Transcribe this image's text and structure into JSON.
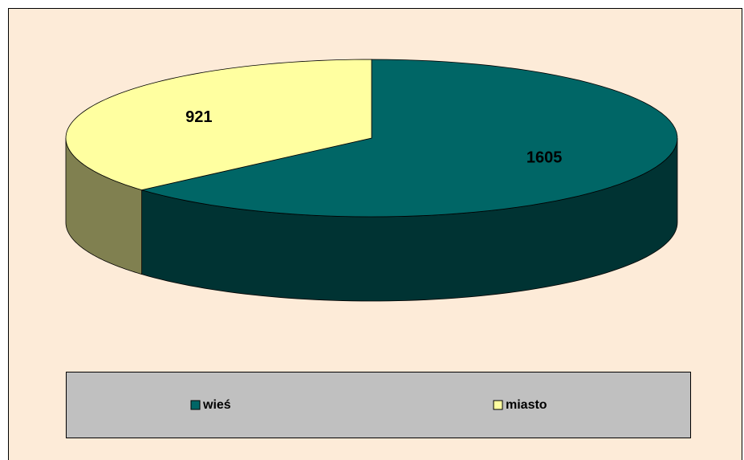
{
  "chart_data": {
    "type": "pie3d",
    "categories": [
      "wieś",
      "miasto"
    ],
    "values": [
      1605,
      921
    ],
    "colors": [
      "#006666",
      "#ffffa0"
    ],
    "legend": "bottom"
  }
}
